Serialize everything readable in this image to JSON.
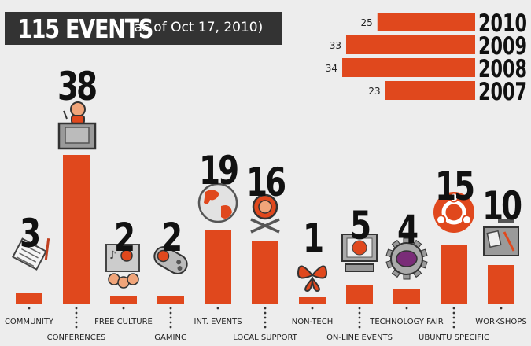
{
  "header": {
    "title": "115 EVENTS",
    "subtitle": "(as of Oct 17, 2010)"
  },
  "colors": {
    "bar": "#e0481d",
    "text": "#111111",
    "title_bg": "#333333",
    "background": "#ededed"
  },
  "chart_data": [
    {
      "type": "bar",
      "orientation": "vertical",
      "categories": [
        "COMMUNITY",
        "CONFERENCES",
        "FREE CULTURE",
        "GAMING",
        "INT. EVENTS",
        "LOCAL SUPPORT",
        "NON-TECH",
        "ON-LINE EVENTS",
        "TECHNOLOGY FAIR",
        "UBUNTU SPECIFIC",
        "WORKSHOPS"
      ],
      "values": [
        3,
        38,
        2,
        2,
        19,
        16,
        1,
        5,
        4,
        15,
        10
      ],
      "data_labels": [
        "3",
        "38",
        "2",
        "2",
        "19",
        "16",
        "1",
        "5",
        "4",
        "15",
        "10"
      ],
      "icons": [
        "notepad-icon",
        "podium-speaker-icon",
        "people-media-icon",
        "gamepad-icon",
        "globe-icon",
        "support-person-icon",
        "butterfly-icon",
        "computer-globe-icon",
        "gear-icon",
        "ubuntu-logo-icon",
        "workshop-tools-icon"
      ],
      "color": "#e0481d",
      "grid": false,
      "ylim": [
        0,
        38
      ]
    },
    {
      "type": "bar",
      "orientation": "horizontal",
      "categories": [
        "2010",
        "2009",
        "2008",
        "2007"
      ],
      "values": [
        25,
        33,
        34,
        23
      ],
      "data_labels": [
        "25",
        "33",
        "34",
        "23"
      ],
      "color": "#e0481d",
      "grid": false
    }
  ]
}
